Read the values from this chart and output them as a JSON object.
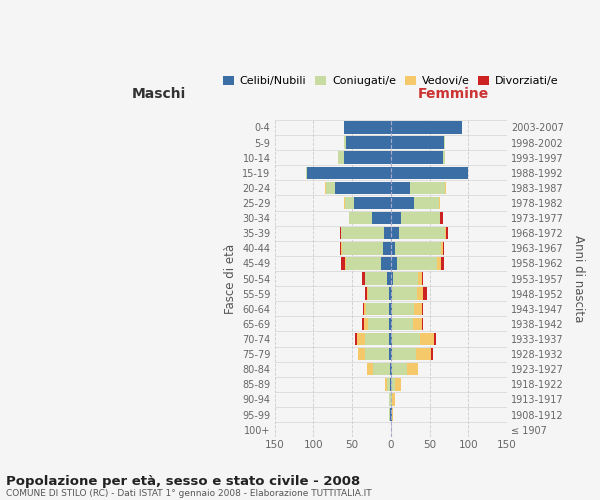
{
  "age_groups": [
    "100+",
    "95-99",
    "90-94",
    "85-89",
    "80-84",
    "75-79",
    "70-74",
    "65-69",
    "60-64",
    "55-59",
    "50-54",
    "45-49",
    "40-44",
    "35-39",
    "30-34",
    "25-29",
    "20-24",
    "15-19",
    "10-14",
    "5-9",
    "0-4"
  ],
  "birth_years": [
    "≤ 1907",
    "1908-1912",
    "1913-1917",
    "1918-1922",
    "1923-1927",
    "1928-1932",
    "1933-1937",
    "1938-1942",
    "1943-1947",
    "1948-1952",
    "1953-1957",
    "1958-1962",
    "1963-1967",
    "1968-1972",
    "1973-1977",
    "1978-1982",
    "1983-1987",
    "1988-1992",
    "1993-1997",
    "1998-2002",
    "2003-2007"
  ],
  "male": {
    "celibi": [
      0,
      1,
      0,
      1,
      1,
      2,
      2,
      2,
      2,
      2,
      5,
      13,
      10,
      9,
      24,
      47,
      72,
      108,
      60,
      58,
      60
    ],
    "coniugati": [
      0,
      1,
      2,
      4,
      22,
      32,
      32,
      28,
      30,
      28,
      28,
      45,
      53,
      55,
      30,
      12,
      12,
      2,
      8,
      2,
      0
    ],
    "vedovi": [
      0,
      0,
      1,
      3,
      8,
      8,
      10,
      5,
      3,
      1,
      1,
      1,
      2,
      1,
      0,
      1,
      1,
      0,
      0,
      0,
      0
    ],
    "divorziati": [
      0,
      0,
      0,
      0,
      0,
      0,
      2,
      2,
      1,
      3,
      3,
      5,
      1,
      1,
      0,
      0,
      0,
      0,
      0,
      0,
      0
    ]
  },
  "female": {
    "nubili": [
      0,
      1,
      0,
      0,
      1,
      2,
      2,
      2,
      2,
      2,
      3,
      8,
      5,
      10,
      13,
      30,
      25,
      100,
      67,
      68,
      92
    ],
    "coniugate": [
      0,
      1,
      2,
      5,
      20,
      30,
      36,
      26,
      28,
      32,
      32,
      52,
      60,
      60,
      50,
      32,
      45,
      0,
      3,
      2,
      0
    ],
    "vedove": [
      0,
      1,
      3,
      8,
      14,
      20,
      18,
      12,
      10,
      8,
      5,
      5,
      2,
      1,
      1,
      1,
      1,
      0,
      0,
      0,
      0
    ],
    "divorziate": [
      0,
      0,
      0,
      0,
      0,
      2,
      2,
      1,
      1,
      4,
      1,
      4,
      2,
      3,
      3,
      0,
      0,
      0,
      0,
      0,
      0
    ]
  },
  "colors": {
    "celibi": "#3a6ea5",
    "coniugati": "#c8dba0",
    "vedovi": "#f5c96a",
    "divorziati": "#cc2222"
  },
  "xlim": 150,
  "title": "Popolazione per età, sesso e stato civile - 2008",
  "subtitle": "COMUNE DI STILO (RC) - Dati ISTAT 1° gennaio 2008 - Elaborazione TUTTITALIA.IT",
  "xlabel_left": "Maschi",
  "xlabel_right": "Femmine",
  "ylabel_left": "Fasce di età",
  "ylabel_right": "Anni di nascita",
  "bg_color": "#f5f5f5",
  "grid_color": "#cccccc"
}
